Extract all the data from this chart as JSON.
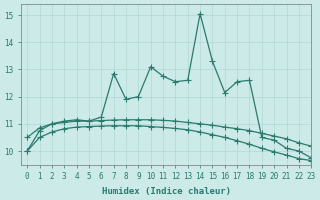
{
  "xlabel": "Humidex (Indice chaleur)",
  "xlim": [
    -0.5,
    23
  ],
  "ylim": [
    9.5,
    15.4
  ],
  "background_color": "#cceae8",
  "grid_color": "#b0d8d5",
  "line_color": "#2a7a6e",
  "x": [
    0,
    1,
    2,
    3,
    4,
    5,
    6,
    7,
    8,
    9,
    10,
    11,
    12,
    13,
    14,
    15,
    16,
    17,
    18,
    19,
    20,
    21,
    22,
    23
  ],
  "line1": [
    10.0,
    10.75,
    11.0,
    11.1,
    11.15,
    11.1,
    11.25,
    12.85,
    11.9,
    12.0,
    13.1,
    12.75,
    12.55,
    12.6,
    15.05,
    13.3,
    12.15,
    12.55,
    12.6,
    10.5,
    10.4,
    10.1,
    10.0,
    9.75
  ],
  "line2": [
    10.5,
    10.85,
    11.0,
    11.05,
    11.1,
    11.1,
    11.12,
    11.14,
    11.15,
    11.15,
    11.15,
    11.13,
    11.1,
    11.05,
    11.0,
    10.95,
    10.88,
    10.82,
    10.75,
    10.65,
    10.55,
    10.45,
    10.3,
    10.18
  ],
  "line3": [
    10.0,
    10.5,
    10.7,
    10.82,
    10.88,
    10.9,
    10.92,
    10.93,
    10.93,
    10.93,
    10.9,
    10.87,
    10.83,
    10.78,
    10.7,
    10.6,
    10.5,
    10.38,
    10.25,
    10.1,
    9.97,
    9.85,
    9.72,
    9.65
  ],
  "yticks": [
    10,
    11,
    12,
    13,
    14,
    15
  ],
  "xtick_labels": [
    "0",
    "1",
    "2",
    "3",
    "4",
    "5",
    "6",
    "7",
    "8",
    "9",
    "10",
    "11",
    "12",
    "13",
    "14",
    "15",
    "16",
    "17",
    "18",
    "19",
    "20",
    "21",
    "22",
    "23"
  ],
  "marker": "+",
  "markersize": 4,
  "linewidth": 0.9,
  "tick_fontsize": 5.5,
  "axis_fontsize": 6.5
}
